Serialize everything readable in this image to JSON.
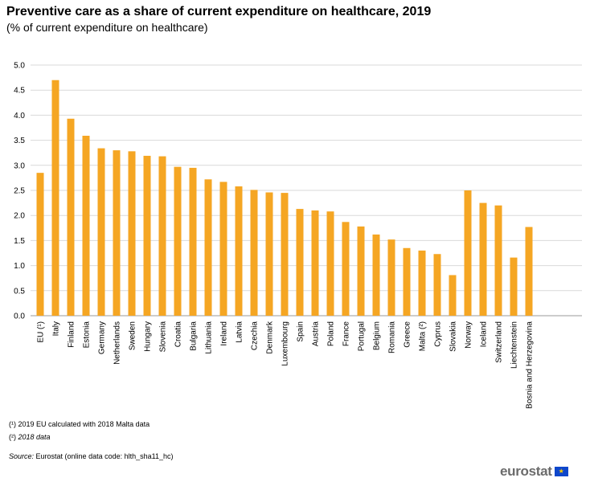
{
  "chart_data": {
    "type": "bar",
    "title": "Preventive care as a share of current expenditure on healthcare, 2019",
    "subtitle": "(% of current expenditure on healthcare)",
    "xlabel": "",
    "ylabel": "",
    "ylim": [
      0,
      5.0
    ],
    "yticks": [
      "0.0",
      "0.5",
      "1.0",
      "1.5",
      "2.0",
      "2.5",
      "3.0",
      "3.5",
      "4.0",
      "4.5",
      "5.0"
    ],
    "grid": true,
    "bar_color": "#f5a623",
    "groups": [
      {
        "name": "eu",
        "items": [
          {
            "category": "EU (¹)",
            "value": 2.85
          }
        ]
      },
      {
        "name": "member-states",
        "items": [
          {
            "category": "Italy",
            "value": 4.7
          },
          {
            "category": "Finland",
            "value": 3.93
          },
          {
            "category": "Estonia",
            "value": 3.59
          },
          {
            "category": "Germany",
            "value": 3.34
          },
          {
            "category": "Netherlands",
            "value": 3.3
          },
          {
            "category": "Sweden",
            "value": 3.28
          },
          {
            "category": "Hungary",
            "value": 3.19
          },
          {
            "category": "Slovenia",
            "value": 3.18
          },
          {
            "category": "Croatia",
            "value": 2.97
          },
          {
            "category": "Bulgaria",
            "value": 2.95
          },
          {
            "category": "Lithuania",
            "value": 2.72
          },
          {
            "category": "Ireland",
            "value": 2.67
          },
          {
            "category": "Latvia",
            "value": 2.58
          },
          {
            "category": "Czechia",
            "value": 2.51
          },
          {
            "category": "Denmark",
            "value": 2.46
          },
          {
            "category": "Luxembourg",
            "value": 2.45
          },
          {
            "category": "Spain",
            "value": 2.13
          },
          {
            "category": "Austria",
            "value": 2.1
          },
          {
            "category": "Poland",
            "value": 2.08
          },
          {
            "category": "France",
            "value": 1.87
          },
          {
            "category": "Portugal",
            "value": 1.78
          },
          {
            "category": "Belgium",
            "value": 1.62
          },
          {
            "category": "Romania",
            "value": 1.52
          },
          {
            "category": "Greece",
            "value": 1.35
          },
          {
            "category": "Malta (²)",
            "value": 1.3
          },
          {
            "category": "Cyprus",
            "value": 1.23
          },
          {
            "category": "Slovakia",
            "value": 0.81
          }
        ]
      },
      {
        "name": "efta",
        "items": [
          {
            "category": "Norway",
            "value": 2.5
          },
          {
            "category": "Iceland",
            "value": 2.25
          },
          {
            "category": "Switzerland",
            "value": 2.2
          },
          {
            "category": "Liechtenstein",
            "value": 1.16
          }
        ]
      },
      {
        "name": "candidates",
        "items": [
          {
            "category": "Bosnia and Herzegovina",
            "value": 1.77
          }
        ]
      }
    ]
  },
  "footnotes": {
    "note1": "(¹) 2019 EU calculated with 2018 Malta data",
    "note2_marker": "(²) ",
    "note2_text": "2018 data"
  },
  "source": {
    "label": "Source:",
    "text": " Eurostat (online data code: hlth_sha11_hc)"
  },
  "logo": {
    "text": "eurostat",
    "flag_icon": "eu-flag-icon",
    "flag_glyph": "★"
  }
}
